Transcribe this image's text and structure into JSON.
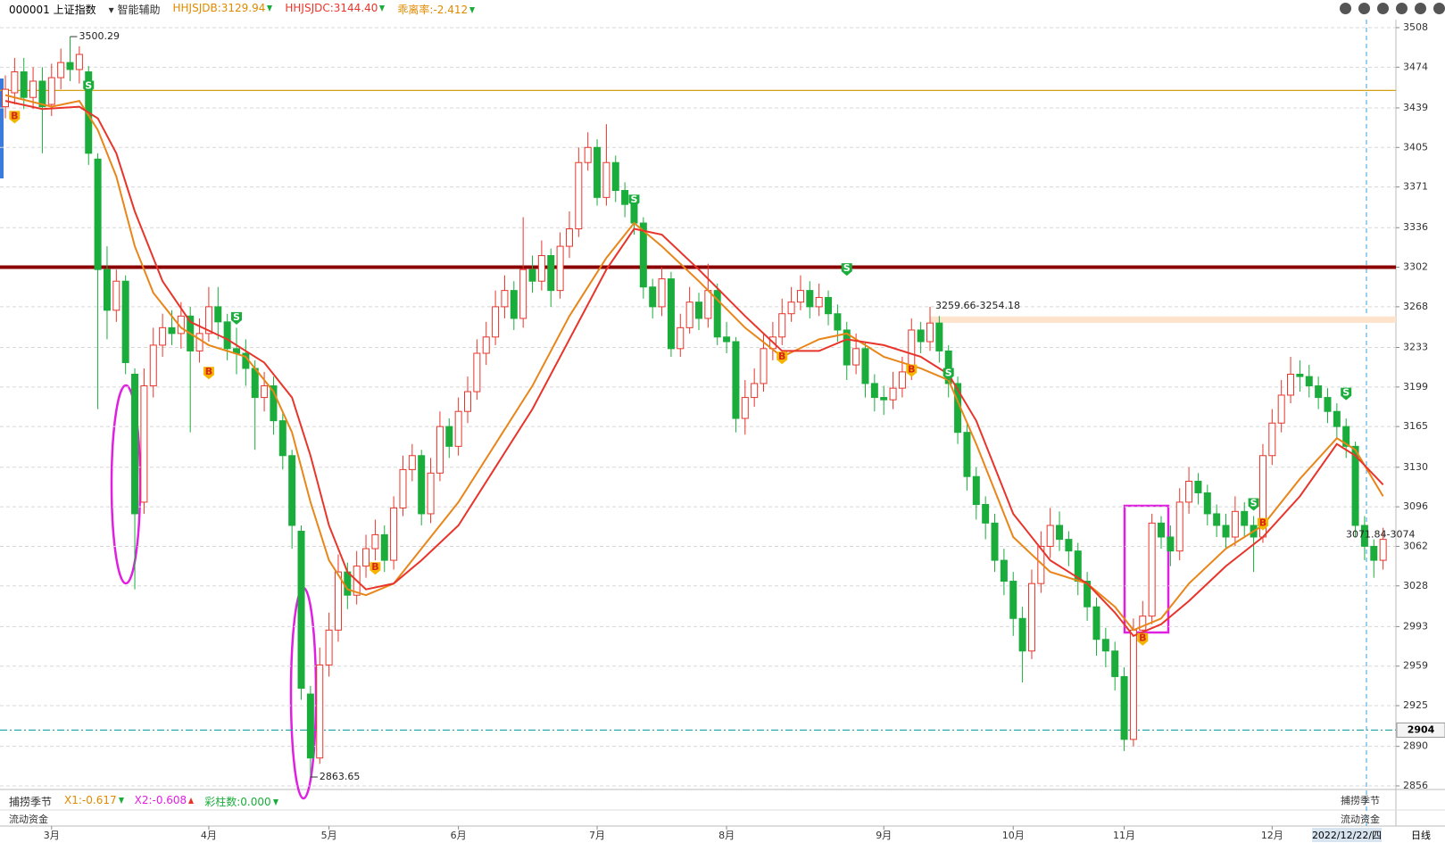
{
  "chart_data": {
    "type": "candlestick",
    "header": {
      "symbol": "000001 上证指数",
      "assist": "智能辅助",
      "indicators": [
        {
          "label": "HHJSJDB:3129.94",
          "color": "#e08a00"
        },
        {
          "label": "HHJSJDC:3144.40",
          "color": "#e8352b"
        },
        {
          "label": "乖离率:-2.412",
          "color": "#e08a00"
        }
      ]
    },
    "lower_panel": {
      "title": "捕捞季节",
      "items": [
        {
          "label": "X1:-0.617",
          "color": "#e08a00"
        },
        {
          "label": "X2:-0.608",
          "color": "#e020e0"
        },
        {
          "label": "彩柱数:0.000",
          "color": "#1aad3c"
        }
      ]
    },
    "fund_panel": {
      "title": "流动资金"
    },
    "period": "日线",
    "cursor_date": "2022/12/22/四",
    "up_color": "#e8352b",
    "down_color": "#1aad3c",
    "categories": [
      null,
      null,
      null,
      null,
      null,
      "3月",
      null,
      null,
      null,
      null,
      null,
      null,
      null,
      null,
      null,
      null,
      null,
      null,
      null,
      null,
      null,
      null,
      "4月",
      null,
      null,
      null,
      null,
      null,
      null,
      null,
      null,
      null,
      null,
      null,
      null,
      "5月",
      null,
      null,
      null,
      null,
      null,
      null,
      null,
      null,
      null,
      null,
      null,
      null,
      null,
      "6月",
      null,
      null,
      null,
      null,
      null,
      null,
      null,
      null,
      null,
      null,
      null,
      null,
      null,
      null,
      "7月",
      null,
      null,
      null,
      null,
      null,
      null,
      null,
      null,
      null,
      null,
      null,
      null,
      null,
      "8月",
      null,
      null,
      null,
      null,
      null,
      null,
      null,
      null,
      null,
      null,
      null,
      null,
      null,
      null,
      null,
      null,
      "9月",
      null,
      null,
      null,
      null,
      null,
      null,
      null,
      null,
      null,
      null,
      null,
      null,
      null,
      "10月",
      null,
      null,
      null,
      null,
      null,
      null,
      null,
      null,
      null,
      null,
      null,
      "11月",
      null,
      null,
      null,
      null,
      null,
      null,
      null,
      null,
      null,
      null,
      null,
      null,
      null,
      null,
      null,
      "12月",
      null,
      null,
      null,
      null,
      null,
      null,
      null,
      null,
      null,
      null,
      null,
      null
    ],
    "open": [
      3440,
      3452,
      3470,
      3448,
      3462,
      3442,
      3465,
      3478,
      3472,
      3470,
      3395,
      3300,
      3265,
      3290,
      3210,
      3100,
      3200,
      3235,
      3250,
      3245,
      3260,
      3230,
      3245,
      3268,
      3255,
      3232,
      3228,
      3215,
      3190,
      3200,
      3170,
      3140,
      3075,
      2935,
      2880,
      2960,
      2990,
      3040,
      3020,
      3045,
      3060,
      3072,
      3050,
      3095,
      3128,
      3140,
      3090,
      3125,
      3165,
      3148,
      3178,
      3195,
      3228,
      3242,
      3268,
      3282,
      3258,
      3300,
      3290,
      3312,
      3282,
      3320,
      3335,
      3392,
      3405,
      3362,
      3392,
      3368,
      3356,
      3340,
      3285,
      3268,
      3292,
      3232,
      3250,
      3272,
      3258,
      3282,
      3242,
      3238,
      3172,
      3190,
      3202,
      3232,
      3242,
      3262,
      3272,
      3282,
      3268,
      3276,
      3262,
      3248,
      3218,
      3232,
      3202,
      3190,
      3188,
      3198,
      3212,
      3248,
      3238,
      3254,
      3230,
      3202,
      3160,
      3122,
      3098,
      3082,
      3050,
      3032,
      3000,
      2972,
      3030,
      3062,
      3080,
      3068,
      3058,
      3032,
      3010,
      2982,
      2972,
      2950,
      2896,
      2990,
      3002,
      3082,
      3070,
      3058,
      3100,
      3118,
      3108,
      3090,
      3080,
      3070,
      3092,
      3080,
      3070,
      3140,
      3168,
      3192,
      3210,
      3208,
      3200,
      3190,
      3178,
      3165,
      3148,
      3080,
      3062,
      3050
    ],
    "high": [
      3467,
      3482,
      3482,
      3474,
      3474,
      3477,
      3490,
      3500.29,
      3492,
      3475,
      3400,
      3320,
      3300,
      3295,
      3215,
      3215,
      3250,
      3262,
      3265,
      3272,
      3268,
      3258,
      3285,
      3285,
      3262,
      3250,
      3240,
      3222,
      3212,
      3208,
      3178,
      3145,
      3080,
      2942,
      2975,
      3005,
      3055,
      3048,
      3058,
      3072,
      3085,
      3080,
      3105,
      3140,
      3150,
      3145,
      3138,
      3178,
      3172,
      3190,
      3208,
      3240,
      3255,
      3282,
      3295,
      3290,
      3345,
      3312,
      3325,
      3318,
      3332,
      3350,
      3405,
      3418,
      3412,
      3425,
      3398,
      3375,
      3362,
      3345,
      3292,
      3302,
      3298,
      3262,
      3285,
      3280,
      3305,
      3288,
      3255,
      3242,
      3205,
      3215,
      3245,
      3255,
      3275,
      3285,
      3295,
      3290,
      3288,
      3282,
      3270,
      3255,
      3245,
      3238,
      3210,
      3200,
      3212,
      3225,
      3258,
      3255,
      3268,
      3260,
      3235,
      3208,
      3168,
      3130,
      3105,
      3090,
      3060,
      3040,
      3010,
      3042,
      3075,
      3095,
      3092,
      3075,
      3065,
      3040,
      3018,
      2992,
      2980,
      2958,
      3000,
      3015,
      3090,
      3088,
      3080,
      3112,
      3130,
      3125,
      3115,
      3098,
      3090,
      3105,
      3100,
      3088,
      3150,
      3180,
      3205,
      3225,
      3222,
      3218,
      3208,
      3198,
      3185,
      3172,
      3152,
      3088,
      3068,
      3078
    ],
    "low": [
      3430,
      3442,
      3438,
      3438,
      3400,
      3432,
      3455,
      3462,
      3460,
      3390,
      3180,
      3240,
      3255,
      3210,
      3025,
      3090,
      3190,
      3225,
      3235,
      3232,
      3160,
      3220,
      3238,
      3240,
      3222,
      3210,
      3200,
      3145,
      3178,
      3158,
      3128,
      3060,
      2930,
      2863.65,
      2875,
      2950,
      2980,
      3008,
      3012,
      3035,
      3050,
      3040,
      3042,
      3088,
      3118,
      3080,
      3082,
      3118,
      3138,
      3140,
      3168,
      3188,
      3218,
      3235,
      3258,
      3248,
      3250,
      3280,
      3282,
      3268,
      3275,
      3310,
      3328,
      3385,
      3355,
      3355,
      3358,
      3345,
      3330,
      3275,
      3258,
      3260,
      3225,
      3225,
      3245,
      3248,
      3250,
      3235,
      3228,
      3160,
      3158,
      3182,
      3195,
      3222,
      3235,
      3255,
      3265,
      3258,
      3260,
      3252,
      3238,
      3205,
      3210,
      3190,
      3178,
      3175,
      3180,
      3190,
      3205,
      3228,
      3230,
      3220,
      3190,
      3150,
      3110,
      3085,
      3068,
      3040,
      3020,
      2985,
      2945,
      2965,
      3022,
      3052,
      3058,
      3045,
      3020,
      2998,
      2968,
      2958,
      2938,
      2886,
      2890,
      2980,
      2995,
      3060,
      3045,
      3050,
      3090,
      3098,
      3080,
      3070,
      3060,
      3062,
      3070,
      3040,
      3065,
      3132,
      3160,
      3185,
      3195,
      3190,
      3180,
      3168,
      3155,
      3138,
      3070,
      3050,
      3035,
      3042
    ],
    "close": [
      3455,
      3470,
      3448,
      3462,
      3440,
      3465,
      3478,
      3472,
      3485,
      3400,
      3300,
      3265,
      3290,
      3220,
      3090,
      3200,
      3235,
      3250,
      3245,
      3260,
      3230,
      3245,
      3268,
      3255,
      3232,
      3228,
      3215,
      3190,
      3200,
      3170,
      3140,
      3080,
      2940,
      2880,
      2960,
      2990,
      3040,
      3020,
      3045,
      3060,
      3072,
      3050,
      3095,
      3128,
      3140,
      3090,
      3125,
      3165,
      3148,
      3178,
      3195,
      3228,
      3242,
      3268,
      3282,
      3258,
      3300,
      3290,
      3312,
      3282,
      3320,
      3335,
      3392,
      3405,
      3362,
      3392,
      3368,
      3356,
      3340,
      3285,
      3268,
      3292,
      3232,
      3250,
      3272,
      3258,
      3282,
      3242,
      3238,
      3172,
      3190,
      3202,
      3232,
      3242,
      3262,
      3272,
      3282,
      3268,
      3276,
      3262,
      3248,
      3218,
      3232,
      3202,
      3190,
      3188,
      3198,
      3212,
      3248,
      3238,
      3254,
      3230,
      3202,
      3160,
      3122,
      3098,
      3082,
      3050,
      3032,
      3000,
      2972,
      3030,
      3062,
      3080,
      3068,
      3058,
      3032,
      3010,
      2982,
      2972,
      2950,
      2896,
      2990,
      3002,
      3082,
      3070,
      3058,
      3100,
      3118,
      3108,
      3090,
      3080,
      3070,
      3092,
      3080,
      3070,
      3140,
      3168,
      3192,
      3210,
      3208,
      3200,
      3190,
      3178,
      3165,
      3148,
      3080,
      3062,
      3050,
      3068
    ],
    "series": [
      {
        "color": "#e8861a",
        "x": [
          0,
          5,
          8,
          10,
          12,
          14,
          16,
          19,
          22,
          26,
          29,
          31,
          33,
          35,
          37,
          39,
          42,
          45,
          49,
          53,
          57,
          61,
          65,
          68,
          71,
          75,
          80,
          84,
          88,
          91,
          95,
          99,
          102,
          105,
          109,
          113,
          117,
          120,
          122,
          125,
          128,
          132,
          136,
          140,
          144,
          146,
          149
        ],
        "values": [
          3450,
          3440,
          3445,
          3420,
          3380,
          3320,
          3280,
          3250,
          3235,
          3225,
          3195,
          3160,
          3100,
          3050,
          3025,
          3020,
          3030,
          3060,
          3100,
          3150,
          3200,
          3260,
          3310,
          3340,
          3320,
          3290,
          3250,
          3225,
          3240,
          3245,
          3225,
          3215,
          3205,
          3150,
          3070,
          3040,
          3030,
          3010,
          2990,
          3000,
          3030,
          3060,
          3080,
          3120,
          3155,
          3145,
          3105
        ]
      },
      {
        "color": "#e8352b",
        "x": [
          0,
          4,
          8,
          10,
          12,
          14,
          17,
          20,
          24,
          28,
          31,
          33,
          35,
          37,
          39,
          42,
          45,
          49,
          53,
          57,
          61,
          65,
          68,
          71,
          75,
          80,
          84,
          88,
          91,
          95,
          99,
          102,
          105,
          109,
          113,
          117,
          120,
          122,
          125,
          128,
          132,
          136,
          140,
          144,
          146,
          149
        ],
        "values": [
          3445,
          3438,
          3440,
          3430,
          3400,
          3350,
          3290,
          3255,
          3240,
          3220,
          3190,
          3140,
          3080,
          3040,
          3025,
          3030,
          3050,
          3080,
          3130,
          3180,
          3240,
          3300,
          3335,
          3330,
          3300,
          3260,
          3230,
          3230,
          3240,
          3235,
          3225,
          3210,
          3170,
          3090,
          3050,
          3030,
          3005,
          2985,
          2995,
          3015,
          3045,
          3070,
          3105,
          3150,
          3140,
          3115
        ]
      }
    ],
    "hlines": [
      {
        "value": 3302,
        "color": "#8b0000",
        "style": "thick"
      },
      {
        "value": 3454,
        "color": "#d4a017",
        "style": "thin"
      },
      {
        "value": 2904,
        "color": "#20a0a0",
        "style": "dash"
      }
    ],
    "gap_zone": {
      "label": "3259.66-3254.18",
      "range": [
        3254.18,
        3259.66
      ],
      "color": "#fde3cc"
    },
    "right_label": {
      "label": "3071.84-3074",
      "value": 3071.84
    },
    "signals": [
      {
        "x": 1,
        "y": 3431,
        "label": "B"
      },
      {
        "x": 9,
        "y": 3457,
        "label": "S"
      },
      {
        "x": 22,
        "y": 3211,
        "label": "B"
      },
      {
        "x": 25,
        "y": 3258,
        "label": "S"
      },
      {
        "x": 40,
        "y": 3043,
        "label": "B"
      },
      {
        "x": 68,
        "y": 3359,
        "label": "S"
      },
      {
        "x": 84,
        "y": 3224,
        "label": "B"
      },
      {
        "x": 91,
        "y": 3300,
        "label": "S"
      },
      {
        "x": 98,
        "y": 3213,
        "label": "B"
      },
      {
        "x": 102,
        "y": 3210,
        "label": "S"
      },
      {
        "x": 123,
        "y": 2982,
        "label": "B"
      },
      {
        "x": 135,
        "y": 3098,
        "label": "S"
      },
      {
        "x": 136,
        "y": 3081,
        "label": "B"
      },
      {
        "x": 145,
        "y": 3193,
        "label": "S"
      }
    ],
    "ylim": [
      2856,
      3508
    ],
    "yticks": [
      2856,
      2890,
      2925,
      2959,
      2993,
      3028,
      3062,
      3096,
      3130,
      3165,
      3199,
      3233,
      3268,
      3302,
      3336,
      3371,
      3405,
      3439,
      3474,
      3508
    ],
    "grid": true
  }
}
